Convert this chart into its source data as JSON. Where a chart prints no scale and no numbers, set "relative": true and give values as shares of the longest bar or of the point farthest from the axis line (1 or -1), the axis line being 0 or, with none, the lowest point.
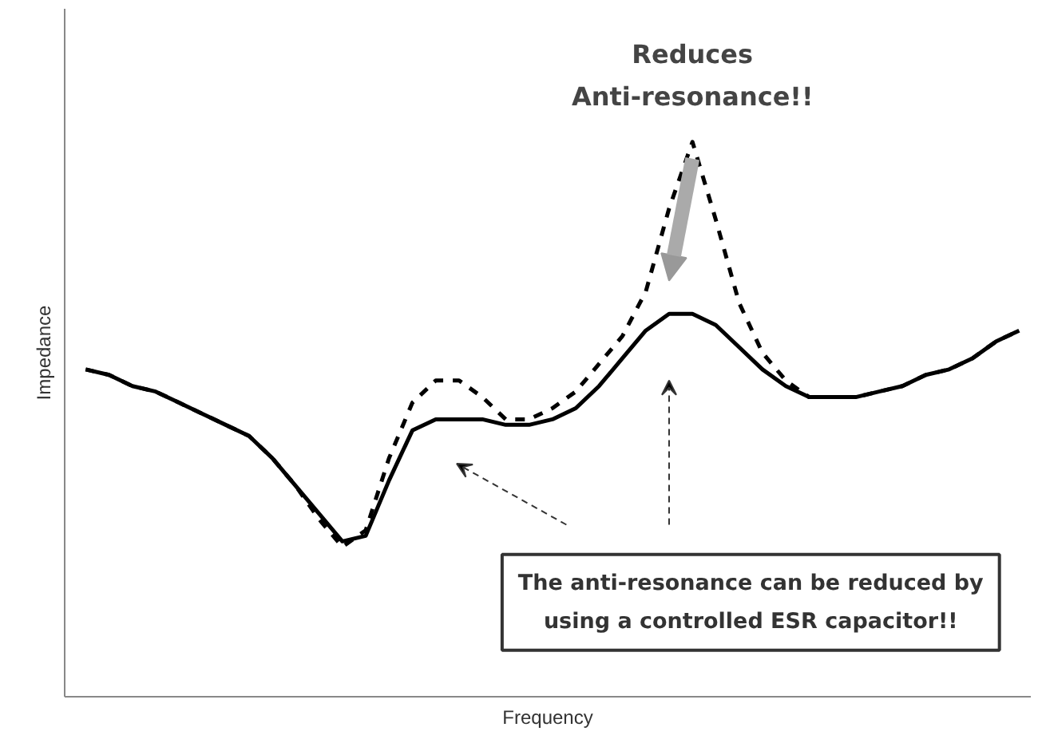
{
  "chart_data": {
    "type": "line",
    "relative": true,
    "xlabel": "Frequency",
    "ylabel": "Impedance",
    "categories": [
      null,
      null,
      null,
      null,
      null,
      null,
      null,
      null,
      null,
      null,
      null,
      null,
      null,
      null,
      null,
      null,
      null,
      null,
      null,
      null,
      null,
      null,
      null,
      null,
      null,
      null,
      null,
      null,
      null,
      null,
      null,
      null,
      null,
      null,
      null,
      null,
      null,
      null,
      null,
      null,
      null
    ],
    "series": [
      {
        "color": "#000000",
        "line_style": "dashed",
        "values": [
          0.59,
          0.58,
          0.56,
          0.55,
          0.53,
          0.51,
          0.49,
          0.47,
          0.43,
          0.38,
          0.32,
          0.27,
          0.3,
          0.43,
          0.53,
          0.57,
          0.57,
          0.54,
          0.5,
          0.5,
          0.52,
          0.55,
          0.6,
          0.65,
          0.73,
          0.88,
          1,
          0.86,
          0.71,
          0.62,
          0.57,
          0.54,
          0.54,
          0.54,
          0.55,
          0.56,
          0.58,
          0.59,
          0.61,
          0.64,
          0.66
        ]
      },
      {
        "color": "#000000",
        "line_style": "solid",
        "values": [
          0.59,
          0.58,
          0.56,
          0.55,
          0.53,
          0.51,
          0.49,
          0.47,
          0.43,
          0.38,
          0.33,
          0.28,
          0.29,
          0.39,
          0.48,
          0.5,
          0.5,
          0.5,
          0.49,
          0.49,
          0.5,
          0.52,
          0.56,
          0.61,
          0.66,
          0.69,
          0.69,
          0.67,
          0.63,
          0.59,
          0.56,
          0.54,
          0.54,
          0.54,
          0.55,
          0.56,
          0.58,
          0.59,
          0.61,
          0.64,
          0.66
        ]
      }
    ],
    "annotations": [
      "Reduces\nAnti-resonance!!",
      "The anti-resonance can be reduced by\nusing a controlled ESR capacitor!!"
    ]
  }
}
